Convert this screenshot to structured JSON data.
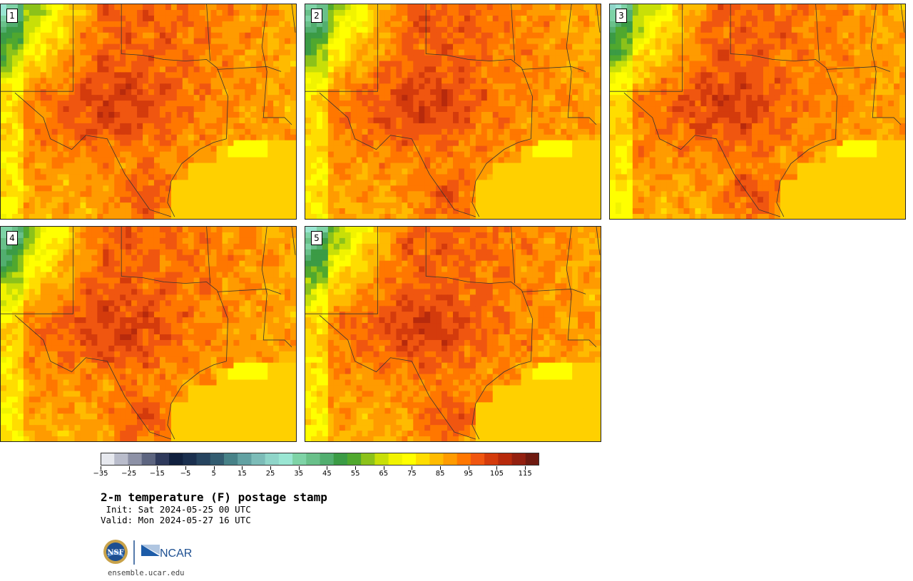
{
  "panels": [
    {
      "label": "1"
    },
    {
      "label": "2"
    },
    {
      "label": "3"
    },
    {
      "label": "4"
    },
    {
      "label": "5"
    }
  ],
  "colorbar": {
    "ticks": [
      "−35",
      "−25",
      "−15",
      "−5",
      "5",
      "15",
      "25",
      "35",
      "45",
      "55",
      "65",
      "75",
      "85",
      "95",
      "105",
      "115"
    ],
    "colors": [
      "#e6e8ee",
      "#b9bccb",
      "#8d91a6",
      "#5d6580",
      "#2f3a5c",
      "#10203e",
      "#1a2f4e",
      "#26445f",
      "#335c70",
      "#478288",
      "#62a1a2",
      "#7cbcb8",
      "#8fd5c9",
      "#9ae6d3",
      "#7ed3a6",
      "#69c08a",
      "#52ae6f",
      "#3b9b45",
      "#50a82e",
      "#8cc21a",
      "#c8df08",
      "#f1f300",
      "#ffff00",
      "#ffdd00",
      "#ffbb00",
      "#ff9b00",
      "#ff7700",
      "#f05610",
      "#d43b0c",
      "#b72a0c",
      "#932010",
      "#6e1a10"
    ]
  },
  "title": "2-m temperature (F) postage stamp",
  "init": " Init: Sat 2024-05-25 00 UTC",
  "valid": "Valid: Mon 2024-05-27 16 UTC",
  "logos": {
    "nsf": "NSF",
    "ncar": "NCAR"
  },
  "url": "ensemble.ucar.edu"
}
